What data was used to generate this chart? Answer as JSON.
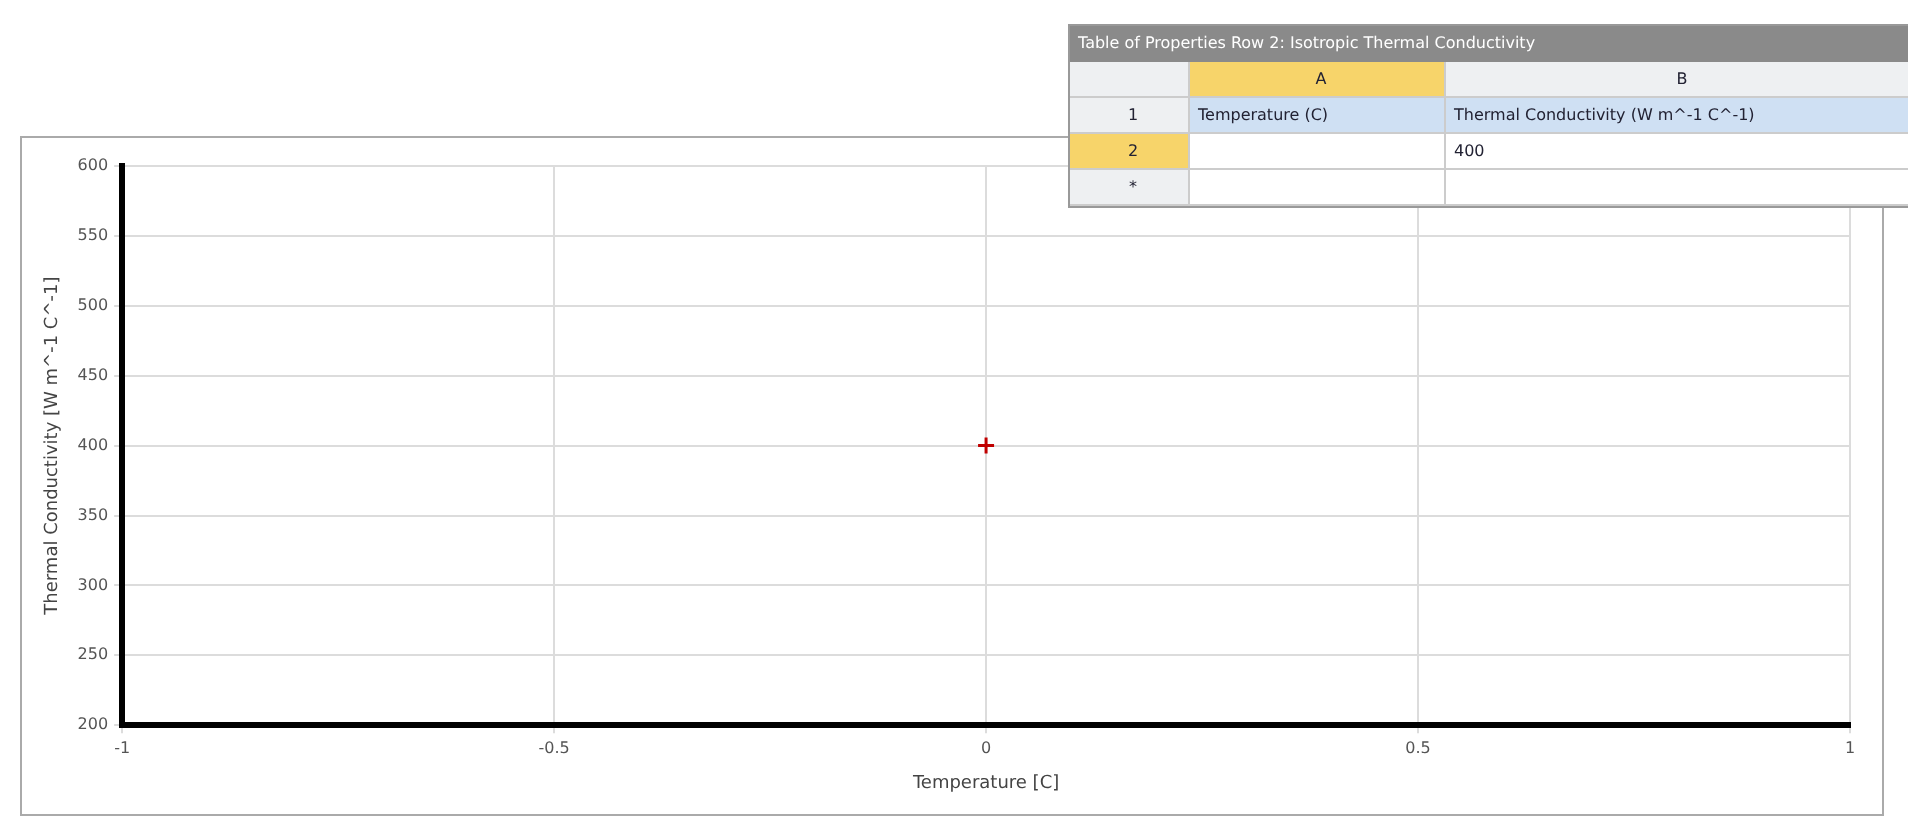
{
  "chart_data": {
    "type": "scatter",
    "xlabel": "Temperature [C]",
    "ylabel": "Thermal Conductivity [W m^-1 C^-1]",
    "x": [
      0
    ],
    "series": [
      {
        "color": "#c00000",
        "values": [
          400
        ]
      }
    ],
    "xlim": [
      -1,
      1
    ],
    "xticks": [
      -1,
      -0.5,
      0,
      0.5,
      1
    ],
    "ylim": [
      200,
      600
    ],
    "yticks": [
      200,
      250,
      300,
      350,
      400,
      450,
      500,
      550,
      600
    ],
    "grid": true,
    "legend": false,
    "marker": "cross",
    "annotations": [
      "Table of Properties Row 2: Isotropic Thermal Conductivity",
      "A",
      "B",
      "1",
      "Temperature (C)",
      "Thermal Conductivity (W m^-1 C^-1)",
      "2",
      "400",
      "*"
    ]
  }
}
